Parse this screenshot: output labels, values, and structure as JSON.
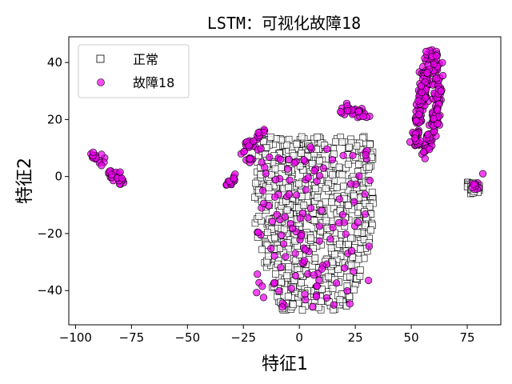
{
  "chart_data": {
    "type": "scatter",
    "title": "LSTM：可视化故障18",
    "xlabel": "特征1",
    "ylabel": "特征2",
    "xlim": [
      -103,
      90
    ],
    "ylim": [
      -52,
      49
    ],
    "xticks": [
      -100,
      -75,
      -50,
      -25,
      0,
      25,
      50,
      75
    ],
    "yticks": [
      -40,
      -20,
      0,
      20,
      40
    ],
    "grid": false,
    "legend_position": "top-left",
    "series": [
      {
        "name": "正常",
        "marker": "square",
        "color": "#ffffff",
        "edge_color": "#000000",
        "clusters": [
          {
            "shape": "blob",
            "x_range": [
              -20,
              33
            ],
            "y_range": [
              -47,
              14
            ],
            "count": 700
          },
          {
            "shape": "blob",
            "x_range": [
              75,
              81
            ],
            "y_range": [
              -6,
              -2
            ],
            "count": 25
          }
        ]
      },
      {
        "name": "故障18",
        "marker": "circle",
        "color": "#ee00ee",
        "edge_color": "#000000",
        "clusters": [
          {
            "shape": "curve",
            "points": [
              [
                -93,
                8
              ],
              [
                -88,
                5
              ],
              [
                -84,
                1
              ],
              [
                -80,
                -2
              ],
              [
                -79,
                0
              ]
            ],
            "count": 40
          },
          {
            "shape": "curve",
            "points": [
              [
                -31,
                -3
              ],
              [
                -28,
                0
              ]
            ],
            "count": 12
          },
          {
            "shape": "curve",
            "points": [
              [
                -26,
                8
              ],
              [
                -22,
                12
              ],
              [
                -16,
                16
              ]
            ],
            "count": 25
          },
          {
            "shape": "curve",
            "points": [
              [
                -23,
                5
              ],
              [
                -17,
                4
              ]
            ],
            "count": 8
          },
          {
            "shape": "curve",
            "points": [
              [
                19,
                23
              ],
              [
                28,
                23
              ],
              [
                31,
                21
              ],
              [
                32,
                20
              ]
            ],
            "count": 30
          },
          {
            "shape": "curve",
            "points": [
              [
                52,
                10
              ],
              [
                53,
                20
              ],
              [
                55,
                28
              ],
              [
                57,
                37
              ],
              [
                58,
                42
              ],
              [
                61,
                43
              ],
              [
                62,
                30
              ],
              [
                60,
                18
              ],
              [
                56,
                8
              ]
            ],
            "count": 260
          },
          {
            "shape": "scatter",
            "x_range": [
              -20,
              32
            ],
            "y_range": [
              -46,
              11
            ],
            "count": 130
          },
          {
            "shape": "blob",
            "x_range": [
              77,
              81
            ],
            "y_range": [
              -5,
              -2
            ],
            "count": 10
          },
          {
            "shape": "point",
            "points": [
              [
                82,
                1
              ]
            ],
            "count": 1
          }
        ]
      }
    ]
  }
}
